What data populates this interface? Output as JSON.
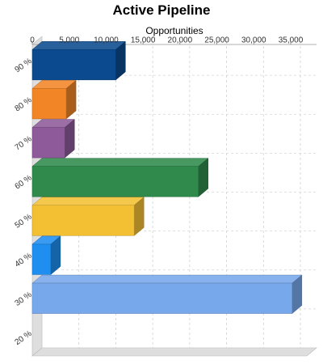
{
  "chart_data": {
    "type": "bar",
    "orientation": "horizontal",
    "title": "Active Pipeline",
    "xlabel": "Opportunities",
    "ylabel": "",
    "xlim": [
      0,
      38500
    ],
    "x_ticks": [
      0,
      5000,
      10000,
      15000,
      20000,
      25000,
      30000,
      35000
    ],
    "x_tick_labels": [
      "0",
      "5,000",
      "10,000",
      "15,000",
      "20,000",
      "25,000",
      "30,000",
      "35,000"
    ],
    "categories": [
      "90 %",
      "80 %",
      "70 %",
      "60 %",
      "50 %",
      "40 %",
      "30 %",
      "20 %"
    ],
    "values": [
      11300,
      4600,
      4400,
      22500,
      13800,
      2500,
      35200,
      0
    ],
    "colors": [
      "#0b4a8f",
      "#f28526",
      "#8e5a9a",
      "#2f8a4b",
      "#f3c033",
      "#1e8ff0",
      "#78a8ec",
      "#cccccc"
    ],
    "grid": true,
    "legend": "none"
  }
}
